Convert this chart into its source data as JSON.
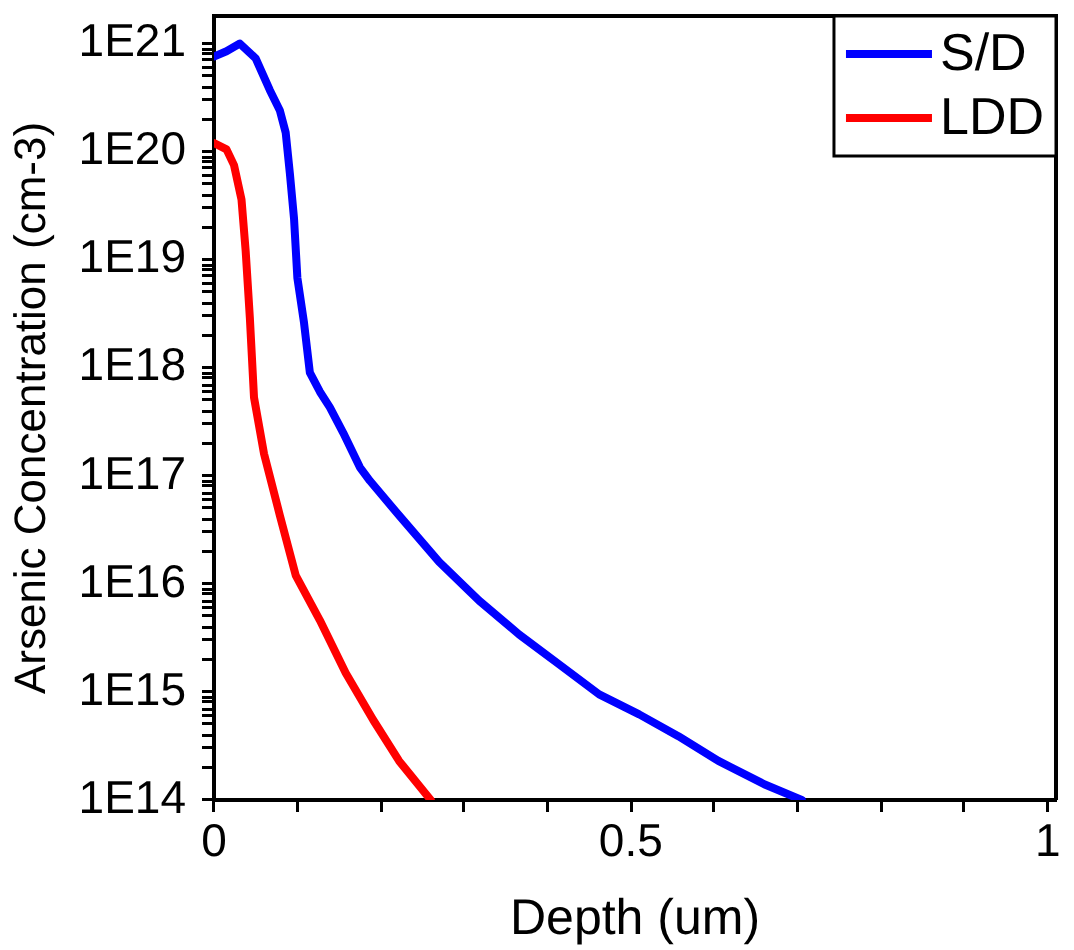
{
  "chart_data": {
    "type": "line",
    "xlabel": "Depth (um)",
    "ylabel": "Arsenic Concentration (cm-3)",
    "series": [
      {
        "name": "S/D",
        "color": "#0000ff",
        "x": [
          0,
          0.015,
          0.031,
          0.05,
          0.067,
          0.079,
          0.086,
          0.091,
          0.096,
          0.1,
          0.108,
          0.115,
          0.127,
          0.139,
          0.155,
          0.175,
          0.187,
          0.222,
          0.27,
          0.318,
          0.366,
          0.414,
          0.462,
          0.51,
          0.557,
          0.605,
          0.66,
          0.705
        ],
        "values": [
          7.6e+20,
          8.5e+20,
          1e+21,
          7.3e+20,
          3.7e+20,
          2.4e+20,
          1.5e+20,
          6.3e+19,
          2.4e+19,
          6.8e+18,
          2.6e+18,
          9e+17,
          6e+17,
          4.3e+17,
          2.5e+17,
          1.2e+17,
          9e+16,
          4.3e+16,
          1.6e+16,
          7000000000000000.0,
          3400000000000000.0,
          1800000000000000.0,
          950000000000000.0,
          620000000000000.0,
          390000000000000.0,
          230000000000000.0,
          140000000000000.0,
          100000000000000.0
        ]
      },
      {
        "name": "LDD",
        "color": "#ff0000",
        "x": [
          0,
          0.015,
          0.024,
          0.033,
          0.038,
          0.043,
          0.048,
          0.06,
          0.079,
          0.098,
          0.127,
          0.158,
          0.191,
          0.222,
          0.26
        ],
        "values": [
          1.2e+20,
          1.05e+20,
          7.5e+19,
          3.6e+19,
          1.2e+19,
          2.9e+18,
          5.3e+17,
          1.6e+17,
          4.3e+16,
          1.2e+16,
          4600000000000000.0,
          1500000000000000.0,
          550000000000000.0,
          230000000000000.0,
          100000000000000.0
        ]
      }
    ],
    "xlim": [
      0,
      1.01
    ],
    "xticks": [
      0,
      {
        "value": 0.1,
        "label": null
      },
      {
        "value": 0.2,
        "label": null
      },
      {
        "value": 0.3,
        "label": null
      },
      {
        "value": 0.4,
        "label": null
      },
      0.5,
      {
        "value": 0.6,
        "label": null
      },
      {
        "value": 0.7,
        "label": null
      },
      {
        "value": 0.8,
        "label": null
      },
      {
        "value": 0.9,
        "label": null
      },
      1
    ],
    "ylim": [
      100000000000000.0,
      1.8e+21
    ],
    "yticks": [
      {
        "value": 100000000000000.0,
        "label": "1E14"
      },
      {
        "value": 200000000000000.0,
        "label": null
      },
      {
        "value": 300000000000000.0,
        "label": null
      },
      {
        "value": 400000000000000.0,
        "label": null
      },
      {
        "value": 500000000000000.0,
        "label": null
      },
      {
        "value": 600000000000000.0,
        "label": null
      },
      {
        "value": 700000000000000.0,
        "label": null
      },
      {
        "value": 800000000000000.0,
        "label": null
      },
      {
        "value": 900000000000000.0,
        "label": null
      },
      {
        "value": 1000000000000000.0,
        "label": "1E15"
      },
      {
        "value": 2000000000000000.0,
        "label": null
      },
      {
        "value": 3000000000000000.0,
        "label": null
      },
      {
        "value": 4000000000000000.0,
        "label": null
      },
      {
        "value": 5000000000000000.0,
        "label": null
      },
      {
        "value": 6000000000000000.0,
        "label": null
      },
      {
        "value": 7000000000000000.0,
        "label": null
      },
      {
        "value": 8000000000000000.0,
        "label": null
      },
      {
        "value": 9000000000000000.0,
        "label": null
      },
      {
        "value": 1e+16,
        "label": "1E16"
      },
      {
        "value": 2e+16,
        "label": null
      },
      {
        "value": 3e+16,
        "label": null
      },
      {
        "value": 4e+16,
        "label": null
      },
      {
        "value": 5e+16,
        "label": null
      },
      {
        "value": 6e+16,
        "label": null
      },
      {
        "value": 7e+16,
        "label": null
      },
      {
        "value": 8e+16,
        "label": null
      },
      {
        "value": 9e+16,
        "label": null
      },
      {
        "value": 1e+17,
        "label": "1E17"
      },
      {
        "value": 2e+17,
        "label": null
      },
      {
        "value": 3e+17,
        "label": null
      },
      {
        "value": 4e+17,
        "label": null
      },
      {
        "value": 5e+17,
        "label": null
      },
      {
        "value": 6e+17,
        "label": null
      },
      {
        "value": 7e+17,
        "label": null
      },
      {
        "value": 8e+17,
        "label": null
      },
      {
        "value": 9e+17,
        "label": null
      },
      {
        "value": 1e+18,
        "label": "1E18"
      },
      {
        "value": 2e+18,
        "label": null
      },
      {
        "value": 3e+18,
        "label": null
      },
      {
        "value": 4e+18,
        "label": null
      },
      {
        "value": 5e+18,
        "label": null
      },
      {
        "value": 6e+18,
        "label": null
      },
      {
        "value": 7e+18,
        "label": null
      },
      {
        "value": 8e+18,
        "label": null
      },
      {
        "value": 9e+18,
        "label": null
      },
      {
        "value": 1e+19,
        "label": "1E19"
      },
      {
        "value": 2e+19,
        "label": null
      },
      {
        "value": 3e+19,
        "label": null
      },
      {
        "value": 4e+19,
        "label": null
      },
      {
        "value": 5e+19,
        "label": null
      },
      {
        "value": 6e+19,
        "label": null
      },
      {
        "value": 7e+19,
        "label": null
      },
      {
        "value": 8e+19,
        "label": null
      },
      {
        "value": 9e+19,
        "label": null
      },
      {
        "value": 1e+20,
        "label": "1E20"
      },
      {
        "value": 2e+20,
        "label": null
      },
      {
        "value": 3e+20,
        "label": null
      },
      {
        "value": 4e+20,
        "label": null
      },
      {
        "value": 5e+20,
        "label": null
      },
      {
        "value": 6e+20,
        "label": null
      },
      {
        "value": 7e+20,
        "label": null
      },
      {
        "value": 8e+20,
        "label": null
      },
      {
        "value": 9e+20,
        "label": null
      },
      {
        "value": 1e+21,
        "label": "1E21"
      }
    ],
    "log": true,
    "legend": "top right"
  }
}
